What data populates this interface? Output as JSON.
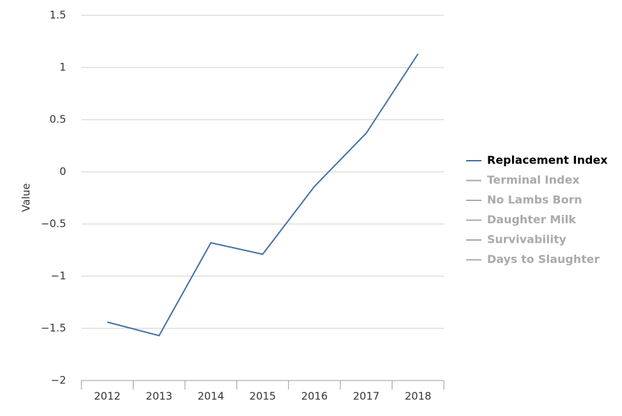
{
  "chart_data": {
    "type": "line",
    "y_label": "Value",
    "categories": [
      "2012",
      "2013",
      "2014",
      "2015",
      "2016",
      "2017",
      "2018"
    ],
    "series": [
      {
        "name": "Replacement Index",
        "color": "#4572a7",
        "values": [
          -1.44,
          -1.57,
          -0.68,
          -0.79,
          -0.14,
          0.37,
          1.13
        ]
      }
    ],
    "hidden_series": [
      "Terminal Index",
      "No Lambs Born",
      "Daughter Milk",
      "Survivability",
      "Days to Slaughter"
    ],
    "hidden_color": "#aaaaaa",
    "ylim": [
      -2,
      1.5
    ],
    "yticks": [
      {
        "value": -2,
        "label": "−2"
      },
      {
        "value": -1.5,
        "label": "−1.5"
      },
      {
        "value": -1,
        "label": "−1"
      },
      {
        "value": -0.5,
        "label": "−0.5"
      },
      0,
      0.5,
      1,
      1.5
    ],
    "grid": true,
    "legend": "right"
  }
}
